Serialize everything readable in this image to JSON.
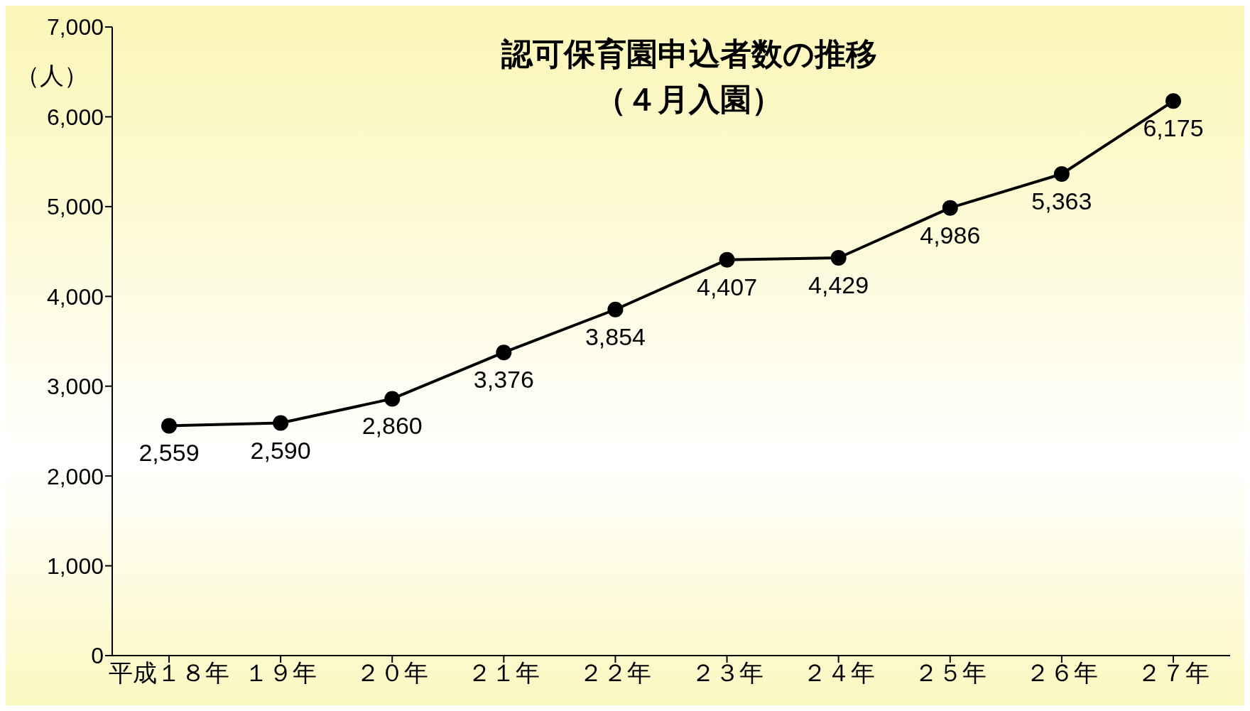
{
  "chart_data": {
    "type": "line",
    "title": "認可保育園申込者数の推移",
    "subtitle": "（４月入園）",
    "ylabel": "（人）",
    "categories": [
      "平成１８年",
      "１９年",
      "２０年",
      "２１年",
      "２２年",
      "２３年",
      "２４年",
      "２５年",
      "２６年",
      "２７年"
    ],
    "series": [
      {
        "color": "#000000",
        "values": [
          2559,
          2590,
          2860,
          3376,
          3854,
          4407,
          4429,
          4986,
          5363,
          6175
        ],
        "value_labels": [
          "2,559",
          "2,590",
          "2,860",
          "3,376",
          "3,854",
          "4,407",
          "4,429",
          "4,986",
          "5,363",
          "6,175"
        ]
      }
    ],
    "ylim": [
      0,
      7000
    ],
    "yticks": [
      {
        "value": 0,
        "label": "0"
      },
      {
        "value": 1000,
        "label": "1,000"
      },
      {
        "value": 2000,
        "label": "2,000"
      },
      {
        "value": 3000,
        "label": "3,000"
      },
      {
        "value": 4000,
        "label": "4,000"
      },
      {
        "value": 5000,
        "label": "5,000"
      },
      {
        "value": 6000,
        "label": "6,000"
      },
      {
        "value": 7000,
        "label": "7,000"
      }
    ],
    "grid": false,
    "legend": false,
    "marker": "circle",
    "line_style": "solid"
  }
}
